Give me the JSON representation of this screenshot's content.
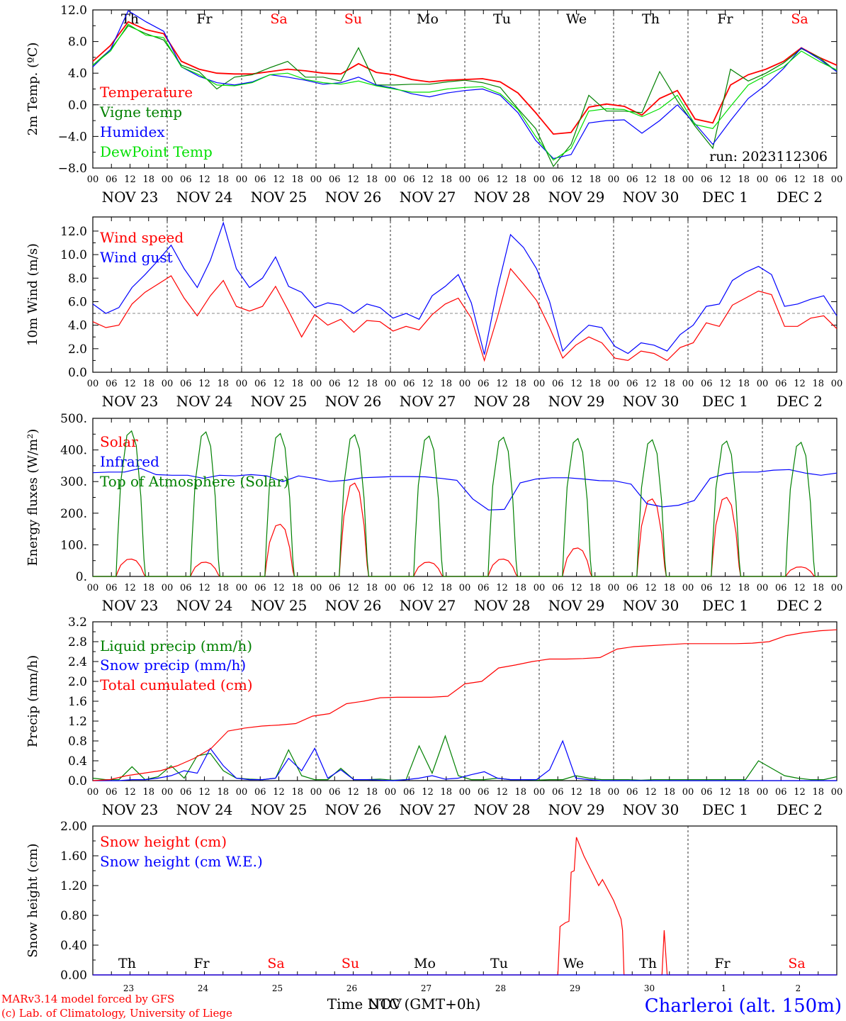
{
  "page": {
    "footer_left_1": "MARv3.14 model forced by GFS",
    "footer_left_2": "(c) Lab. of Climatology, University of Liege",
    "xlabel": "Time UTC (GMT+0h)",
    "xlabel_overlap": "NOV",
    "station": "Charleroi (alt. 150m)",
    "run": "run: 2023112306"
  },
  "axis": {
    "hour_ticks": [
      "00",
      "06",
      "12",
      "18"
    ],
    "end_tick": "00",
    "dates": [
      {
        "month": "NOV",
        "day": "23"
      },
      {
        "month": "NOV",
        "day": "24"
      },
      {
        "month": "NOV",
        "day": "25"
      },
      {
        "month": "NOV",
        "day": "26"
      },
      {
        "month": "NOV",
        "day": "27"
      },
      {
        "month": "NOV",
        "day": "28"
      },
      {
        "month": "NOV",
        "day": "29"
      },
      {
        "month": "NOV",
        "day": "30"
      },
      {
        "month": "DEC",
        "day": "1"
      },
      {
        "month": "DEC",
        "day": "2"
      }
    ],
    "weekdays": [
      "Th",
      "Fr",
      "Sa",
      "Su",
      "Mo",
      "Tu",
      "We",
      "Th",
      "Fr",
      "Sa"
    ],
    "weekday_colors": [
      "#000000",
      "#000000",
      "#ff0000",
      "#ff0000",
      "#000000",
      "#000000",
      "#000000",
      "#000000",
      "#000000",
      "#ff0000"
    ],
    "bottom_days": [
      "23",
      "24",
      "25",
      "26",
      "27",
      "28",
      "29",
      "30",
      "1",
      "2"
    ]
  },
  "colors": {
    "red": "#ff0000",
    "green": "#008000",
    "blue": "#0000ff",
    "lightgreen": "#00e000",
    "grey": "#888888"
  },
  "chart_data": [
    {
      "type": "line",
      "ylabel": "2m Temp. (ºC)",
      "ylim": [
        -8,
        12
      ],
      "yticks": [
        "12.0",
        "8.0",
        "4.0",
        "0.0",
        "−4.0",
        "−8.0"
      ],
      "ytick_values": [
        12,
        8,
        4,
        0,
        -4,
        -8
      ],
      "ref_line": 0,
      "x_step_hours": 12,
      "series": [
        {
          "name": "Temperature",
          "color": "#ff0000",
          "values": [
            5.5,
            7.5,
            10.5,
            9.5,
            9,
            5.5,
            4.5,
            4,
            3.9,
            3.9,
            4.2,
            4.5,
            4.3,
            4,
            3.9,
            5.2,
            4.1,
            3.8,
            3.2,
            2.9,
            3.1,
            3.2,
            3.3,
            2.9,
            1.5,
            -1,
            -3.7,
            -3.5,
            -0.3,
            0.1,
            -0.2,
            -1.3,
            0.8,
            1.8,
            -1.8,
            -2.3,
            2.5,
            3.8,
            4.5,
            5.5,
            7.2,
            6,
            5
          ]
        },
        {
          "name": "Vigne temp",
          "color": "#008000",
          "values": [
            5.0,
            7.0,
            10.0,
            9.0,
            8.2,
            5.0,
            4.2,
            2.0,
            3.5,
            3.8,
            4.7,
            5.5,
            3.5,
            3.5,
            3.0,
            7.2,
            2.5,
            2.5,
            2.6,
            2.6,
            2.9,
            3.1,
            2.8,
            2.2,
            -0.5,
            -3,
            -7.8,
            -5,
            1.2,
            -0.8,
            -0.8,
            -1.0,
            4.2,
            0.5,
            -2.7,
            -5.5,
            4.5,
            3.0,
            4.0,
            5.3,
            7.1,
            6.0,
            4.2
          ]
        },
        {
          "name": "Humidex",
          "color": "#0000ff",
          "values": [
            4.8,
            7.0,
            11.9,
            10.5,
            9.3,
            4.8,
            3.6,
            2.8,
            2.5,
            2.9,
            3.8,
            3.5,
            3.1,
            2.6,
            2.8,
            3.5,
            2.5,
            2.1,
            1.4,
            1.0,
            1.5,
            1.8,
            2.0,
            1.2,
            -1.0,
            -4.5,
            -6.8,
            -6.3,
            -2.3,
            -2.0,
            -1.9,
            -3.6,
            -2.0,
            0.0,
            -2.4,
            -5.0,
            -2.0,
            0.8,
            2.5,
            4.6,
            7.2,
            5.8,
            4.2
          ]
        },
        {
          "name": "DewPoint Temp",
          "color": "#00e000",
          "values": [
            5.0,
            6.8,
            10.2,
            8.8,
            8.5,
            4.8,
            3.8,
            2.5,
            2.4,
            2.8,
            3.8,
            4.0,
            3.2,
            2.8,
            2.6,
            3.0,
            2.4,
            2.0,
            1.6,
            1.6,
            2.0,
            2.2,
            2.3,
            1.4,
            -0.6,
            -4.0,
            -7.0,
            -5.5,
            -0.8,
            -0.5,
            -0.6,
            -1.5,
            -0.5,
            1.2,
            -2.5,
            -3.0,
            -0.2,
            2.5,
            3.7,
            4.8,
            6.8,
            5.5,
            4.4
          ]
        }
      ]
    },
    {
      "type": "line",
      "ylabel": "10m Wind (m/s)",
      "ylim": [
        0,
        13.2
      ],
      "yticks": [
        "12.0",
        "10.0",
        "8.0",
        "6.0",
        "4.0",
        "2.0",
        "0.0"
      ],
      "ytick_values": [
        12,
        10,
        8,
        6,
        4,
        2,
        0
      ],
      "ref_line": 5,
      "x_step_hours": 12,
      "series": [
        {
          "name": "Wind speed",
          "color": "#ff0000",
          "values": [
            4.3,
            3.8,
            4.0,
            5.8,
            6.8,
            7.5,
            8.2,
            6.3,
            4.8,
            6.5,
            7.8,
            5.6,
            5.2,
            5.6,
            7.3,
            5.2,
            3.0,
            4.9,
            4.0,
            4.5,
            3.4,
            4.4,
            4.3,
            3.5,
            3.9,
            3.6,
            4.9,
            5.8,
            6.3,
            4.6,
            1.0,
            4.7,
            8.8,
            7.5,
            6.1,
            3.8,
            1.2,
            2.3,
            3.0,
            2.5,
            1.2,
            1.0,
            1.8,
            1.6,
            1.0,
            2.1,
            2.5,
            4.2,
            3.9,
            5.7,
            6.3,
            6.9,
            6.6,
            3.9,
            3.9,
            4.6,
            4.8,
            3.7
          ]
        },
        {
          "name": "Wind gust",
          "color": "#0000ff",
          "values": [
            5.8,
            5.0,
            5.5,
            7.2,
            8.3,
            9.5,
            10.8,
            8.8,
            7.2,
            9.5,
            12.7,
            8.8,
            7.2,
            8.0,
            9.8,
            7.3,
            6.8,
            5.5,
            5.9,
            5.7,
            5.0,
            5.8,
            5.5,
            4.6,
            5.0,
            4.5,
            6.5,
            7.3,
            8.3,
            5.9,
            1.5,
            7.1,
            11.7,
            10.6,
            8.8,
            6.0,
            1.8,
            3.0,
            4.0,
            3.8,
            2.2,
            1.6,
            2.5,
            2.3,
            1.8,
            3.2,
            4.0,
            5.6,
            5.8,
            7.8,
            8.5,
            9.0,
            8.3,
            5.6,
            5.8,
            6.2,
            6.5,
            4.8
          ]
        }
      ]
    },
    {
      "type": "line",
      "ylabel": "Energy fluxes (W/m²)",
      "ylim": [
        0,
        500
      ],
      "yticks": [
        "500.",
        "400.",
        "300.",
        "200.",
        "100.",
        "0."
      ],
      "ytick_values": [
        500,
        400,
        300,
        200,
        100,
        0
      ],
      "series": [
        {
          "name": "Solar",
          "color": "#ff0000",
          "daily_peak": [
            55,
            45,
            165,
            295,
            45,
            55,
            90,
            245,
            250,
            30
          ]
        },
        {
          "name": "Infrared",
          "color": "#0000ff",
          "values": [
            328,
            330,
            330,
            342,
            322,
            320,
            320,
            310,
            320,
            318,
            322,
            318,
            300,
            318,
            310,
            300,
            304,
            312,
            314,
            316,
            316,
            315,
            310,
            304,
            245,
            210,
            212,
            296,
            308,
            312,
            312,
            308,
            303,
            302,
            292,
            230,
            220,
            225,
            240,
            310,
            325,
            330,
            330,
            336,
            338,
            327,
            320,
            327
          ]
        },
        {
          "name": "Top of Atmosphere (Solar)",
          "color": "#008000",
          "daily_peak": [
            460,
            457,
            452,
            448,
            444,
            440,
            436,
            432,
            428,
            424
          ]
        }
      ]
    },
    {
      "type": "line",
      "ylabel": "Precip (mm/h)",
      "ylim": [
        0,
        3.2
      ],
      "yticks": [
        "3.2",
        "2.8",
        "2.4",
        "2.0",
        "1.6",
        "1.2",
        "0.8",
        "0.4",
        "0.0"
      ],
      "ytick_values": [
        3.2,
        2.8,
        2.4,
        2.0,
        1.6,
        1.2,
        0.8,
        0.4,
        0.0
      ],
      "series": [
        {
          "name": "Liquid precip (mm/h)",
          "color": "#008000",
          "values": [
            0.05,
            0.02,
            0.02,
            0.28,
            0.02,
            0.08,
            0.3,
            0.05,
            0.5,
            0.55,
            0.2,
            0.05,
            0.03,
            0.02,
            0.05,
            0.62,
            0.1,
            0.02,
            0.02,
            0.25,
            0.02,
            0.02,
            0.03,
            0.01,
            0.02,
            0.7,
            0.15,
            0.9,
            0.1,
            0.02,
            0.02,
            0.05,
            0.02,
            0.02,
            0.01,
            0.02,
            0.02,
            0.1,
            0.05,
            0.02,
            0.02,
            0.02,
            0.01,
            0.02,
            0.02,
            0.02,
            0.02,
            0.02,
            0.02,
            0.02,
            0.02,
            0.4,
            0.25,
            0.1,
            0.05,
            0.02,
            0.02,
            0.08
          ]
        },
        {
          "name": "Snow precip (mm/h)",
          "color": "#0000ff",
          "values": [
            0.0,
            0.0,
            0.0,
            0.02,
            0.02,
            0.05,
            0.1,
            0.2,
            0.15,
            0.65,
            0.3,
            0.05,
            0.02,
            0.02,
            0.05,
            0.45,
            0.2,
            0.65,
            0.05,
            0.22,
            0.02,
            0.02,
            0.01,
            0.0,
            0.02,
            0.05,
            0.1,
            0.03,
            0.05,
            0.12,
            0.18,
            0.05,
            0.02,
            0.02,
            0.02,
            0.22,
            0.8,
            0.05,
            0.02,
            0.0,
            0.0,
            0.0,
            0.0,
            0.0,
            0.0,
            0.0,
            0.0,
            0.0,
            0.0,
            0.0,
            0.0,
            0.0,
            0.0,
            0.0,
            0.0,
            0.0,
            0.0,
            0.0
          ]
        },
        {
          "name": "Total cumulated (cm)",
          "color": "#ff0000",
          "values": [
            0.0,
            0.02,
            0.1,
            0.15,
            0.2,
            0.3,
            0.45,
            0.65,
            1.0,
            1.06,
            1.1,
            1.12,
            1.15,
            1.3,
            1.35,
            1.55,
            1.6,
            1.67,
            1.68,
            1.68,
            1.68,
            1.7,
            1.95,
            2.0,
            2.27,
            2.33,
            2.4,
            2.45,
            2.45,
            2.46,
            2.48,
            2.65,
            2.7,
            2.72,
            2.74,
            2.76,
            2.76,
            2.76,
            2.76,
            2.77,
            2.8,
            2.92,
            2.98,
            3.02,
            3.04
          ]
        }
      ]
    },
    {
      "type": "line",
      "ylabel": "Snow height (cm)",
      "ylim": [
        0,
        2.0
      ],
      "yticks": [
        "2.00",
        "1.60",
        "1.20",
        "0.80",
        "0.40",
        "0.00"
      ],
      "ytick_values": [
        2.0,
        1.6,
        1.2,
        0.8,
        0.4,
        0.0
      ],
      "series": [
        {
          "name": "Snow height (cm)",
          "color": "#ff0000",
          "points": [
            [
              0,
              0
            ],
            [
              6.25,
              0
            ],
            [
              6.28,
              0.65
            ],
            [
              6.35,
              0.7
            ],
            [
              6.4,
              0.72
            ],
            [
              6.43,
              1.38
            ],
            [
              6.47,
              1.4
            ],
            [
              6.5,
              1.85
            ],
            [
              6.6,
              1.6
            ],
            [
              6.7,
              1.4
            ],
            [
              6.8,
              1.2
            ],
            [
              6.85,
              1.28
            ],
            [
              7.0,
              1.0
            ],
            [
              7.1,
              0.75
            ],
            [
              7.12,
              0.6
            ],
            [
              7.14,
              0
            ],
            [
              7.65,
              0
            ],
            [
              7.68,
              0.6
            ],
            [
              7.72,
              0
            ],
            [
              10,
              0
            ]
          ]
        },
        {
          "name": "Snow height (cm W.E.)",
          "color": "#0000ff",
          "points": [
            [
              0,
              0
            ],
            [
              10,
              0
            ]
          ]
        }
      ]
    }
  ]
}
